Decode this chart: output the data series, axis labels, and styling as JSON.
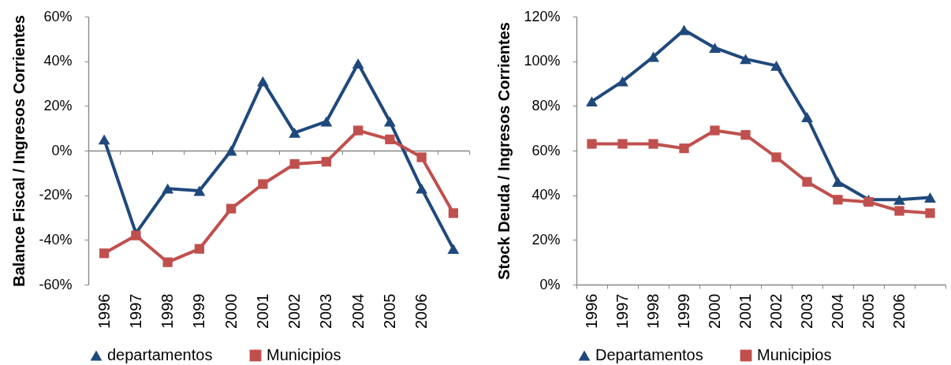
{
  "chart_data": [
    {
      "type": "line",
      "ylabel": "Balance Fiscal / Ingresos Corrientes",
      "categories": [
        "1996",
        "1997",
        "1998",
        "1999",
        "2000",
        "2001",
        "2002",
        "2003",
        "2004",
        "2005",
        "2006",
        null
      ],
      "series": [
        {
          "name": "departamentos",
          "color": "#1f497d",
          "marker": "triangle",
          "values": [
            5,
            -37,
            -17,
            -18,
            0,
            31,
            8,
            13,
            39,
            13,
            -17,
            -44
          ]
        },
        {
          "name": "Municipios",
          "color": "#c0504d",
          "marker": "square",
          "values": [
            -46,
            -38,
            -50,
            -44,
            -26,
            -15,
            -6,
            -5,
            9,
            5,
            -3,
            -28
          ]
        }
      ],
      "ylim": [
        -60,
        60
      ],
      "yticks": [
        {
          "value": -60,
          "label": "-60%"
        },
        {
          "value": -40,
          "label": "-40%"
        },
        {
          "value": -20,
          "label": "-20%"
        },
        {
          "value": 0,
          "label": "0%"
        },
        {
          "value": 20,
          "label": "20%"
        },
        {
          "value": 40,
          "label": "40%"
        },
        {
          "value": 60,
          "label": "60%"
        }
      ],
      "legend": "bottom"
    },
    {
      "type": "line",
      "ylabel": "Stock Deuda / Ingresos Corrientes",
      "categories": [
        "1996",
        "1997",
        "1998",
        "1999",
        "2000",
        "2001",
        "2002",
        "2003",
        "2004",
        "2005",
        "2006",
        null
      ],
      "series": [
        {
          "name": "Departamentos",
          "color": "#1f497d",
          "marker": "triangle",
          "values": [
            82,
            91,
            102,
            114,
            106,
            101,
            98,
            75,
            46,
            38,
            38,
            39
          ]
        },
        {
          "name": "Municipios",
          "color": "#c0504d",
          "marker": "square",
          "values": [
            63,
            63,
            63,
            61,
            69,
            67,
            57,
            46,
            38,
            37,
            33,
            32
          ]
        }
      ],
      "ylim": [
        0,
        120
      ],
      "yticks": [
        {
          "value": 0,
          "label": "0%"
        },
        {
          "value": 20,
          "label": "20%"
        },
        {
          "value": 40,
          "label": "40%"
        },
        {
          "value": 60,
          "label": "60%"
        },
        {
          "value": 80,
          "label": "80%"
        },
        {
          "value": 100,
          "label": "100%"
        },
        {
          "value": 120,
          "label": "120%"
        }
      ],
      "legend": "bottom"
    }
  ]
}
